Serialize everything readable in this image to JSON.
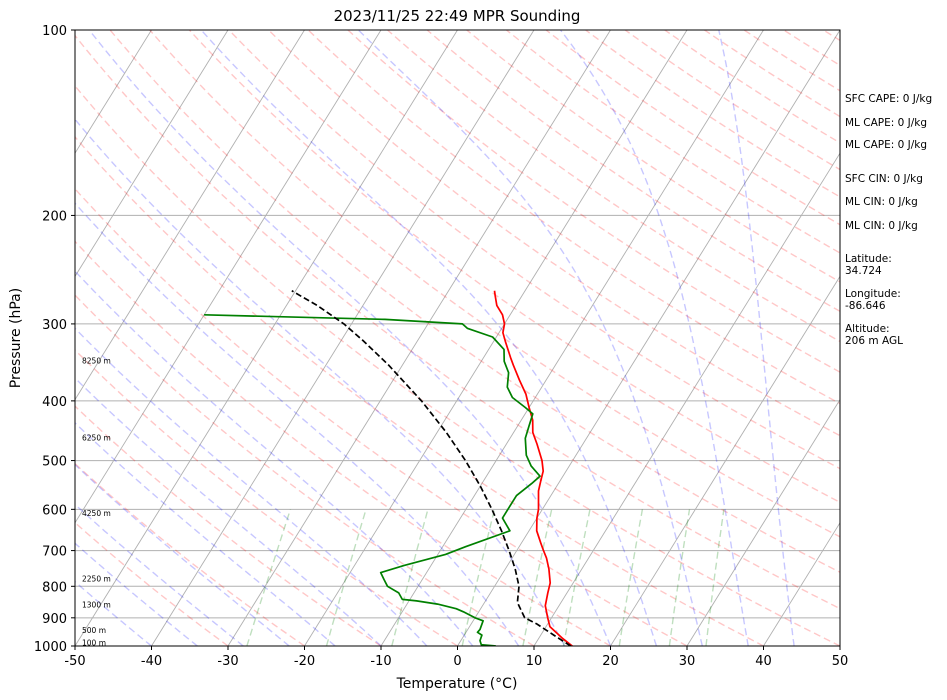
{
  "chart_data": {
    "type": "line",
    "title": "2023/11/25 22:49 MPR Sounding",
    "xlabel": "Temperature (°C)",
    "ylabel": "Pressure (hPa)",
    "xlim": [
      -50,
      50
    ],
    "ylim": [
      1000,
      100
    ],
    "y_scale": "log",
    "grid": true,
    "x_ticks": [
      -50,
      -40,
      -30,
      -20,
      -10,
      0,
      10,
      20,
      30,
      40,
      50
    ],
    "y_ticks": [
      1000,
      900,
      800,
      700,
      600,
      500,
      400,
      300,
      200,
      100
    ],
    "series": [
      {
        "role": "temperature",
        "color": "#ff0000",
        "points": [
          [
            15.0,
            1000
          ],
          [
            13.0,
            970
          ],
          [
            10.5,
            930
          ],
          [
            9.5,
            900
          ],
          [
            8.2,
            860
          ],
          [
            7.5,
            820
          ],
          [
            7.0,
            790
          ],
          [
            5.7,
            750
          ],
          [
            4.5,
            720
          ],
          [
            3.5,
            700
          ],
          [
            2.5,
            680
          ],
          [
            1.0,
            650
          ],
          [
            0.0,
            620
          ],
          [
            -0.5,
            600
          ],
          [
            -2.0,
            560
          ],
          [
            -2.5,
            540
          ],
          [
            -3.0,
            520
          ],
          [
            -4.0,
            500
          ],
          [
            -6.0,
            470
          ],
          [
            -7.5,
            450
          ],
          [
            -8.5,
            430
          ],
          [
            -10.0,
            410
          ],
          [
            -11.5,
            390
          ],
          [
            -13.5,
            370
          ],
          [
            -15.5,
            350
          ],
          [
            -16.5,
            340
          ],
          [
            -18.5,
            320
          ],
          [
            -19.5,
            310
          ],
          [
            -20.0,
            300
          ],
          [
            -21.0,
            290
          ],
          [
            -22.5,
            280
          ],
          [
            -23.0,
            275
          ],
          [
            -23.5,
            270
          ],
          [
            -24.0,
            265
          ]
        ]
      },
      {
        "role": "dewpoint",
        "color": "#008000",
        "points": [
          [
            5.0,
            1000
          ],
          [
            3.0,
            995
          ],
          [
            2.5,
            980
          ],
          [
            2.3,
            960
          ],
          [
            1.5,
            950
          ],
          [
            1.6,
            940
          ],
          [
            1.3,
            910
          ],
          [
            0.0,
            900
          ],
          [
            -2.0,
            880
          ],
          [
            -3.2,
            870
          ],
          [
            -6.0,
            855
          ],
          [
            -9.0,
            845
          ],
          [
            -11.0,
            840
          ],
          [
            -12.0,
            820
          ],
          [
            -14.0,
            800
          ],
          [
            -15.0,
            780
          ],
          [
            -16.0,
            760
          ],
          [
            -13.5,
            740
          ],
          [
            -9.0,
            710
          ],
          [
            -7.0,
            690
          ],
          [
            -2.5,
            650
          ],
          [
            -4.5,
            620
          ],
          [
            -4.5,
            600
          ],
          [
            -4.5,
            570
          ],
          [
            -3.5,
            545
          ],
          [
            -3.0,
            530
          ],
          [
            -5.0,
            510
          ],
          [
            -6.5,
            490
          ],
          [
            -8.0,
            460
          ],
          [
            -8.5,
            440
          ],
          [
            -9.0,
            420
          ],
          [
            -10.5,
            410
          ],
          [
            -13.0,
            395
          ],
          [
            -14.5,
            380
          ],
          [
            -15.5,
            360
          ],
          [
            -17.0,
            345
          ],
          [
            -18.0,
            330
          ],
          [
            -20.5,
            315
          ],
          [
            -24.5,
            305
          ],
          [
            -25.5,
            300
          ],
          [
            -36.0,
            295
          ],
          [
            -60.0,
            290
          ]
        ]
      },
      {
        "role": "parcel",
        "color": "#000000",
        "dashed": true,
        "points": [
          [
            14.8,
            1000
          ],
          [
            11.7,
            960
          ],
          [
            8.5,
            920
          ],
          [
            6.5,
            900
          ],
          [
            4.3,
            850
          ],
          [
            3.2,
            800
          ],
          [
            1.3,
            750
          ],
          [
            -1.0,
            700
          ],
          [
            -3.6,
            650
          ],
          [
            -6.6,
            600
          ],
          [
            -10.0,
            550
          ],
          [
            -14.0,
            500
          ],
          [
            -18.8,
            450
          ],
          [
            -24.6,
            400
          ],
          [
            -31.8,
            350
          ],
          [
            -37.0,
            320
          ],
          [
            -41.0,
            300
          ],
          [
            -46.0,
            280
          ],
          [
            -49.0,
            270
          ],
          [
            -50.5,
            265
          ]
        ]
      }
    ],
    "height_labels": [
      "100 m",
      "500 m",
      "1300 m",
      "2250 m",
      "4250 m",
      "6250 m",
      "8250 m"
    ],
    "height_pressures": [
      990,
      945,
      860,
      780,
      610,
      460,
      345
    ]
  },
  "side_text": {
    "sfc_cape": "SFC CAPE: 0 J/kg",
    "ml_cape_1": "ML CAPE: 0 J/kg",
    "ml_cape_2": "ML CAPE: 0 J/kg",
    "sfc_cin": "SFC CIN: 0 J/kg",
    "ml_cin_1": "ML CIN: 0 J/kg",
    "ml_cin_2": "ML CIN: 0 J/kg",
    "latitude_label": "Latitude:",
    "latitude_value": "34.724",
    "longitude_label": "Longitude:",
    "longitude_value": "-86.646",
    "altitude_label": "Altitude:",
    "altitude_value": "206 m AGL"
  }
}
